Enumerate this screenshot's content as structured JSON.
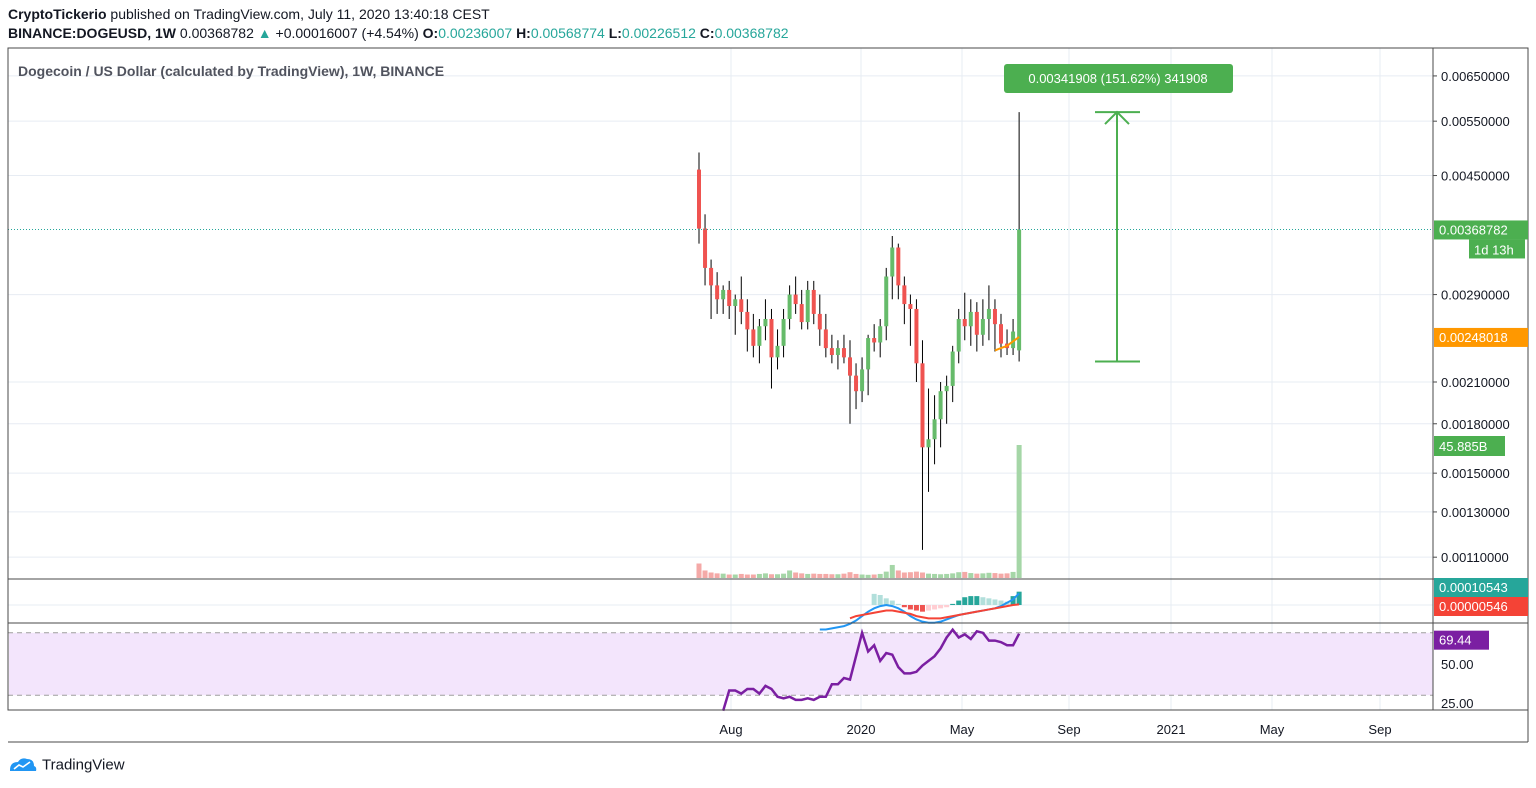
{
  "header": {
    "publisher": "CryptoTickerio",
    "published_text": " published on TradingView.com, July 11, 2020 13:40:18 CEST",
    "symbol": "BINANCE:DOGEUSD, 1W",
    "last": "0.00368782",
    "arrow": "▲",
    "change": "+0.00016007 (+4.54%)",
    "o_label": "O:",
    "o": "0.00236007",
    "h_label": "H:",
    "h": "0.00568774",
    "l_label": "L:",
    "l": "0.00226512",
    "c_label": "C:",
    "c": "0.00368782"
  },
  "footer": {
    "brand": "TradingView"
  },
  "colors": {
    "up": "#66bb6a",
    "down": "#ef5350",
    "macd": "#2196f3",
    "signal": "#f44336",
    "rsi": "#7b1fa2",
    "rsi_band": "#f3e5fc",
    "ma": "#ff9800",
    "measure": "#4caf50"
  },
  "chart_data": [
    {
      "type": "candlestick",
      "title": "Dogecoin / US Dollar (calculated by TradingView), 1W, BINANCE",
      "ylim": [
        0.001,
        0.0065
      ],
      "y_scale": "log",
      "y_ticks": [
        "0.00650000",
        "0.00550000",
        "0.00450000",
        "0.00290000",
        "0.00210000",
        "0.00180000",
        "0.00130000",
        "0.00110000"
      ],
      "y_ticks_partial": [
        "0.00150000"
      ],
      "x_labels": [
        "Aug",
        "2020",
        "May",
        "Sep",
        "2021",
        "May",
        "Sep"
      ],
      "last_price_label": "0.00368782",
      "countdown_label": "1d 13h",
      "ma_label": "0.00248018",
      "volume_label": "45.885B",
      "measure_label": "0.00341908 (151.62%) 341908",
      "candles": [
        {
          "o": 0.0046,
          "h": 0.0049,
          "l": 0.0035,
          "c": 0.0037
        },
        {
          "o": 0.0037,
          "h": 0.0039,
          "l": 0.003,
          "c": 0.0032
        },
        {
          "o": 0.0032,
          "h": 0.0033,
          "l": 0.00265,
          "c": 0.003
        },
        {
          "o": 0.003,
          "h": 0.00315,
          "l": 0.0027,
          "c": 0.00285
        },
        {
          "o": 0.00285,
          "h": 0.003,
          "l": 0.0027,
          "c": 0.00295
        },
        {
          "o": 0.00295,
          "h": 0.00305,
          "l": 0.00265,
          "c": 0.00278
        },
        {
          "o": 0.00278,
          "h": 0.0029,
          "l": 0.0025,
          "c": 0.00285
        },
        {
          "o": 0.00285,
          "h": 0.0031,
          "l": 0.0026,
          "c": 0.00272
        },
        {
          "o": 0.00272,
          "h": 0.00285,
          "l": 0.00235,
          "c": 0.00255
        },
        {
          "o": 0.00255,
          "h": 0.0027,
          "l": 0.0023,
          "c": 0.0024
        },
        {
          "o": 0.0024,
          "h": 0.00265,
          "l": 0.00225,
          "c": 0.00258
        },
        {
          "o": 0.00258,
          "h": 0.00285,
          "l": 0.00245,
          "c": 0.00265
        },
        {
          "o": 0.00265,
          "h": 0.00275,
          "l": 0.00205,
          "c": 0.0023
        },
        {
          "o": 0.0023,
          "h": 0.00255,
          "l": 0.0022,
          "c": 0.0024
        },
        {
          "o": 0.0024,
          "h": 0.00275,
          "l": 0.0023,
          "c": 0.00265
        },
        {
          "o": 0.00265,
          "h": 0.003,
          "l": 0.00255,
          "c": 0.0029
        },
        {
          "o": 0.0029,
          "h": 0.0031,
          "l": 0.0027,
          "c": 0.0028
        },
        {
          "o": 0.0028,
          "h": 0.00295,
          "l": 0.00255,
          "c": 0.00262
        },
        {
          "o": 0.00262,
          "h": 0.00305,
          "l": 0.00255,
          "c": 0.00295
        },
        {
          "o": 0.00295,
          "h": 0.00305,
          "l": 0.0026,
          "c": 0.0027
        },
        {
          "o": 0.0027,
          "h": 0.0029,
          "l": 0.0024,
          "c": 0.00255
        },
        {
          "o": 0.00255,
          "h": 0.0027,
          "l": 0.0023,
          "c": 0.00238
        },
        {
          "o": 0.00238,
          "h": 0.0025,
          "l": 0.00225,
          "c": 0.00232
        },
        {
          "o": 0.00232,
          "h": 0.00245,
          "l": 0.0022,
          "c": 0.00238
        },
        {
          "o": 0.00238,
          "h": 0.0025,
          "l": 0.00225,
          "c": 0.0023
        },
        {
          "o": 0.0023,
          "h": 0.00245,
          "l": 0.0018,
          "c": 0.00215
        },
        {
          "o": 0.00215,
          "h": 0.00225,
          "l": 0.0019,
          "c": 0.00203
        },
        {
          "o": 0.00203,
          "h": 0.0023,
          "l": 0.00195,
          "c": 0.0022
        },
        {
          "o": 0.0022,
          "h": 0.0025,
          "l": 0.002,
          "c": 0.00247
        },
        {
          "o": 0.00247,
          "h": 0.0026,
          "l": 0.00235,
          "c": 0.00243
        },
        {
          "o": 0.00243,
          "h": 0.00265,
          "l": 0.0023,
          "c": 0.00258
        },
        {
          "o": 0.00258,
          "h": 0.0032,
          "l": 0.00245,
          "c": 0.0031
        },
        {
          "o": 0.0031,
          "h": 0.0036,
          "l": 0.00285,
          "c": 0.00345
        },
        {
          "o": 0.00345,
          "h": 0.0035,
          "l": 0.00285,
          "c": 0.003
        },
        {
          "o": 0.003,
          "h": 0.0031,
          "l": 0.0026,
          "c": 0.0028
        },
        {
          "o": 0.0028,
          "h": 0.0029,
          "l": 0.0024,
          "c": 0.00275
        },
        {
          "o": 0.00275,
          "h": 0.00285,
          "l": 0.0021,
          "c": 0.00225
        },
        {
          "o": 0.00225,
          "h": 0.00245,
          "l": 0.00113,
          "c": 0.00165
        },
        {
          "o": 0.00165,
          "h": 0.00205,
          "l": 0.0014,
          "c": 0.0017
        },
        {
          "o": 0.0017,
          "h": 0.002,
          "l": 0.00155,
          "c": 0.00183
        },
        {
          "o": 0.00183,
          "h": 0.0021,
          "l": 0.00165,
          "c": 0.00203
        },
        {
          "o": 0.00203,
          "h": 0.00215,
          "l": 0.0018,
          "c": 0.00207
        },
        {
          "o": 0.00207,
          "h": 0.0024,
          "l": 0.00195,
          "c": 0.00235
        },
        {
          "o": 0.00235,
          "h": 0.00275,
          "l": 0.00225,
          "c": 0.00265
        },
        {
          "o": 0.00265,
          "h": 0.00292,
          "l": 0.00245,
          "c": 0.00258
        },
        {
          "o": 0.00258,
          "h": 0.00285,
          "l": 0.0024,
          "c": 0.00272
        },
        {
          "o": 0.00272,
          "h": 0.00282,
          "l": 0.00235,
          "c": 0.0025
        },
        {
          "o": 0.0025,
          "h": 0.00285,
          "l": 0.0024,
          "c": 0.00265
        },
        {
          "o": 0.00265,
          "h": 0.003,
          "l": 0.00245,
          "c": 0.00275
        },
        {
          "o": 0.00275,
          "h": 0.00285,
          "l": 0.00235,
          "c": 0.0026
        },
        {
          "o": 0.0026,
          "h": 0.0027,
          "l": 0.0023,
          "c": 0.00242
        },
        {
          "o": 0.00242,
          "h": 0.00255,
          "l": 0.00232,
          "c": 0.00238
        },
        {
          "o": 0.00238,
          "h": 0.00265,
          "l": 0.00232,
          "c": 0.00253
        },
        {
          "o": 0.00236,
          "h": 0.00568774,
          "l": 0.00226512,
          "c": 0.00368782
        }
      ],
      "moving_average_tail": [
        0.00236,
        0.00238,
        0.0024,
        0.00244,
        0.00248018
      ],
      "volume_billions": [
        5.0,
        2.6,
        1.9,
        1.6,
        1.5,
        1.2,
        1.2,
        1.4,
        1.2,
        1.2,
        1.4,
        1.6,
        1.3,
        1.3,
        1.5,
        2.6,
        1.9,
        1.6,
        1.4,
        1.5,
        1.4,
        1.4,
        1.3,
        1.3,
        1.5,
        2.0,
        1.4,
        1.2,
        1.1,
        1.2,
        1.4,
        2.2,
        4.5,
        2.6,
        1.9,
        2.0,
        2.2,
        1.9,
        1.5,
        1.4,
        1.3,
        1.4,
        1.6,
        2.0,
        2.1,
        1.7,
        1.5,
        1.6,
        1.8,
        1.7,
        1.5,
        1.6,
        2.1,
        45.885
      ],
      "volume_up": [
        false,
        false,
        false,
        false,
        true,
        false,
        true,
        false,
        false,
        false,
        true,
        true,
        false,
        true,
        true,
        true,
        false,
        false,
        true,
        false,
        false,
        false,
        false,
        true,
        false,
        false,
        false,
        true,
        true,
        false,
        true,
        true,
        true,
        false,
        false,
        false,
        false,
        false,
        true,
        true,
        true,
        true,
        true,
        true,
        false,
        true,
        false,
        true,
        true,
        false,
        false,
        false,
        true,
        true
      ]
    },
    {
      "type": "line",
      "title": "MACD",
      "value_labels": [
        "0.00010543",
        "0.00000546"
      ],
      "macd": [
        -0.00022,
        -0.00022,
        -0.00021,
        -0.0002,
        -0.00019,
        -0.00017,
        -0.00014,
        -0.0001,
        -6e-05,
        -3e-05,
        -1e-05,
        0.0,
        -1e-05,
        -3e-05,
        -6e-05,
        -0.0001,
        -0.00013,
        -0.00015,
        -0.00016,
        -0.00016,
        -0.00015,
        -0.00013,
        -0.00011,
        -9e-05,
        -8e-05,
        -7e-05,
        -6e-05,
        -5e-05,
        -4e-05,
        -3e-05,
        -1e-05,
        2e-05,
        5e-05,
        0.00010543
      ],
      "signal": [
        -0.00012,
        -0.0001,
        -9e-05,
        -8e-05,
        -7e-05,
        -6e-05,
        -5e-05,
        -5e-05,
        -6e-05,
        -7e-05,
        -8e-05,
        -0.0001,
        -0.00011,
        -0.00012,
        -0.00012,
        -0.00012,
        -0.00011,
        -0.0001,
        -9e-05,
        -8e-05,
        -7e-05,
        -6e-05,
        -5e-05,
        -4e-05,
        -3e-05,
        -2e-05,
        -1e-05,
        0.0,
        5.46e-06
      ],
      "histogram": [
        0.0001,
        9e-05,
        6e-05,
        4e-05,
        1e-05,
        -2e-05,
        -4e-05,
        -5e-05,
        -6e-05,
        -5e-05,
        -4e-05,
        -3e-05,
        -2e-05,
        1e-05,
        4e-05,
        7e-05,
        8e-05,
        8e-05,
        7e-05,
        6e-05,
        5e-05,
        4e-05,
        3e-05,
        8e-05,
        0.00012
      ]
    },
    {
      "type": "line",
      "title": "RSI",
      "y_ticks": [
        "50.00",
        "25.00"
      ],
      "value_label": "69.44",
      "band": [
        30,
        70
      ],
      "values": [
        20,
        33,
        33,
        31,
        34,
        34,
        31,
        36,
        34,
        29,
        28,
        29,
        27,
        27,
        28,
        27,
        29,
        29,
        37,
        37,
        41,
        40,
        55,
        70,
        58,
        62,
        52,
        57,
        56,
        48,
        44,
        44,
        45,
        49,
        52,
        55,
        60,
        67,
        72,
        67,
        69,
        66,
        71,
        70,
        65,
        65,
        64,
        62,
        62,
        69.44
      ]
    }
  ]
}
